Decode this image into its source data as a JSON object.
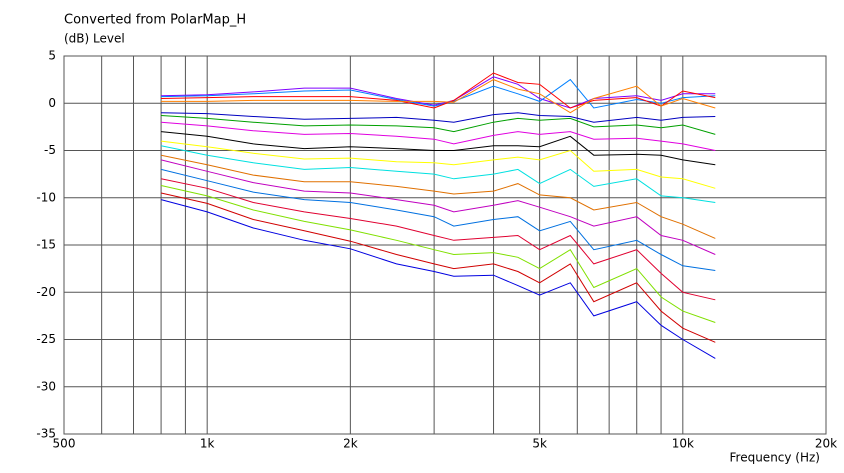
{
  "chart_data": {
    "type": "line",
    "title": "Converted from PolarMap_H",
    "ylabel": "(dB)  Level",
    "xlabel": "Frequency  (Hz)",
    "xscale": "log",
    "grid": true,
    "xlim": [
      500,
      20000
    ],
    "ylim": [
      -35,
      5
    ],
    "xticks": [
      500,
      {
        "value": 1000,
        "label": "1k"
      },
      {
        "value": 2000,
        "label": "2k"
      },
      {
        "value": 5000,
        "label": "5k"
      },
      {
        "value": 10000,
        "label": "10k"
      },
      {
        "value": 20000,
        "label": "20k"
      }
    ],
    "xminorticks": [
      600,
      700,
      800,
      900,
      3000,
      4000,
      6000,
      7000,
      8000,
      9000
    ],
    "yticks": [
      5,
      0,
      -5,
      -10,
      -15,
      -20,
      -25,
      -30,
      -35
    ],
    "x": [
      800,
      1000,
      1250,
      1600,
      2000,
      2500,
      3000,
      3300,
      4000,
      4500,
      5000,
      5800,
      6500,
      8000,
      9000,
      10000,
      11700
    ],
    "series": [
      {
        "color": "#8000ff",
        "values": [
          0.8,
          0.9,
          1.2,
          1.6,
          1.6,
          0.5,
          -0.2,
          0.3,
          2.8,
          2.0,
          0.5,
          -0.5,
          0.5,
          0.8,
          0.3,
          1.0,
          1.0
        ]
      },
      {
        "color": "#0080ff",
        "values": [
          0.7,
          0.8,
          1.0,
          1.3,
          1.4,
          0.4,
          -0.3,
          0.2,
          1.8,
          1.0,
          0.2,
          2.5,
          -0.5,
          0.4,
          0.0,
          0.6,
          0.8
        ]
      },
      {
        "color": "#ff0000",
        "values": [
          0.5,
          0.6,
          0.7,
          0.7,
          0.7,
          0.3,
          -0.5,
          0.3,
          3.2,
          2.2,
          2.0,
          -0.5,
          0.3,
          0.6,
          -0.3,
          1.3,
          0.6
        ]
      },
      {
        "color": "#ff8000",
        "values": [
          0.2,
          0.2,
          0.3,
          0.3,
          0.3,
          0.2,
          0.2,
          0.1,
          2.5,
          1.5,
          1.0,
          -1.0,
          0.5,
          1.8,
          -0.3,
          0.5,
          -0.5
        ]
      },
      {
        "color": "#0000c0",
        "values": [
          -1.0,
          -1.1,
          -1.4,
          -1.7,
          -1.6,
          -1.5,
          -1.8,
          -2.0,
          -1.2,
          -1.0,
          -1.3,
          -1.4,
          -2.0,
          -1.5,
          -1.8,
          -1.5,
          -1.4
        ]
      },
      {
        "color": "#00a000",
        "values": [
          -1.3,
          -1.6,
          -2.0,
          -2.4,
          -2.3,
          -2.4,
          -2.6,
          -3.0,
          -2.0,
          -1.6,
          -1.8,
          -1.6,
          -2.5,
          -2.3,
          -2.6,
          -2.3,
          -3.3
        ]
      },
      {
        "color": "#e000e0",
        "values": [
          -2.0,
          -2.4,
          -2.9,
          -3.3,
          -3.2,
          -3.5,
          -3.8,
          -4.3,
          -3.4,
          -3.0,
          -3.3,
          -3.0,
          -3.8,
          -3.7,
          -4.0,
          -4.3,
          -5.0
        ]
      },
      {
        "color": "#000000",
        "values": [
          -3.0,
          -3.5,
          -4.3,
          -4.8,
          -4.6,
          -4.8,
          -5.0,
          -5.0,
          -4.5,
          -4.5,
          -4.6,
          -3.5,
          -5.5,
          -5.4,
          -5.5,
          -6.0,
          -6.5
        ]
      },
      {
        "color": "#ffff00",
        "values": [
          -4.0,
          -4.6,
          -5.3,
          -5.9,
          -5.8,
          -6.2,
          -6.3,
          -6.5,
          -6.0,
          -5.7,
          -6.0,
          -5.0,
          -7.2,
          -7.0,
          -7.8,
          -8.0,
          -9.0
        ]
      },
      {
        "color": "#00e0e0",
        "values": [
          -4.5,
          -5.5,
          -6.3,
          -7.0,
          -6.8,
          -7.2,
          -7.5,
          -8.0,
          -7.5,
          -7.0,
          -8.5,
          -7.0,
          -8.8,
          -8.0,
          -9.8,
          -10.0,
          -10.5
        ]
      },
      {
        "color": "#e07000",
        "values": [
          -5.5,
          -6.5,
          -7.6,
          -8.3,
          -8.3,
          -8.8,
          -9.3,
          -9.6,
          -9.3,
          -8.5,
          -9.7,
          -10.0,
          -11.3,
          -10.5,
          -12.0,
          -12.8,
          -14.3
        ]
      },
      {
        "color": "#c000c0",
        "values": [
          -6.0,
          -7.2,
          -8.4,
          -9.3,
          -9.5,
          -10.2,
          -10.8,
          -11.5,
          -10.8,
          -10.3,
          -11.0,
          -12.0,
          -13.0,
          -12.0,
          -14.0,
          -14.5,
          -16.0
        ]
      },
      {
        "color": "#0070e0",
        "values": [
          -7.0,
          -8.2,
          -9.4,
          -10.2,
          -10.5,
          -11.3,
          -12.0,
          -13.0,
          -12.3,
          -12.0,
          -13.5,
          -12.5,
          -15.5,
          -14.5,
          -16.0,
          -17.2,
          -17.7
        ]
      },
      {
        "color": "#e00030",
        "values": [
          -8.0,
          -9.0,
          -10.5,
          -11.5,
          -12.2,
          -13.0,
          -14.0,
          -14.5,
          -14.2,
          -14.0,
          -15.5,
          -14.0,
          -17.0,
          -15.5,
          -18.0,
          -20.0,
          -20.8
        ]
      },
      {
        "color": "#80e000",
        "values": [
          -8.7,
          -9.8,
          -11.3,
          -12.5,
          -13.4,
          -14.5,
          -15.5,
          -16.0,
          -15.8,
          -16.3,
          -17.5,
          -15.5,
          -19.5,
          -17.5,
          -20.5,
          -22.0,
          -23.2
        ]
      },
      {
        "color": "#d00000",
        "values": [
          -9.5,
          -10.6,
          -12.3,
          -13.5,
          -14.6,
          -16.0,
          -17.0,
          -17.5,
          -17.0,
          -17.8,
          -19.0,
          -17.0,
          -21.0,
          -19.0,
          -22.0,
          -23.8,
          -25.3
        ]
      },
      {
        "color": "#0000e0",
        "values": [
          -10.2,
          -11.5,
          -13.2,
          -14.5,
          -15.4,
          -17.0,
          -17.8,
          -18.3,
          -18.2,
          -19.3,
          -20.3,
          -19.0,
          -22.5,
          -21.0,
          -23.5,
          -25.0,
          -27.0
        ]
      }
    ]
  }
}
